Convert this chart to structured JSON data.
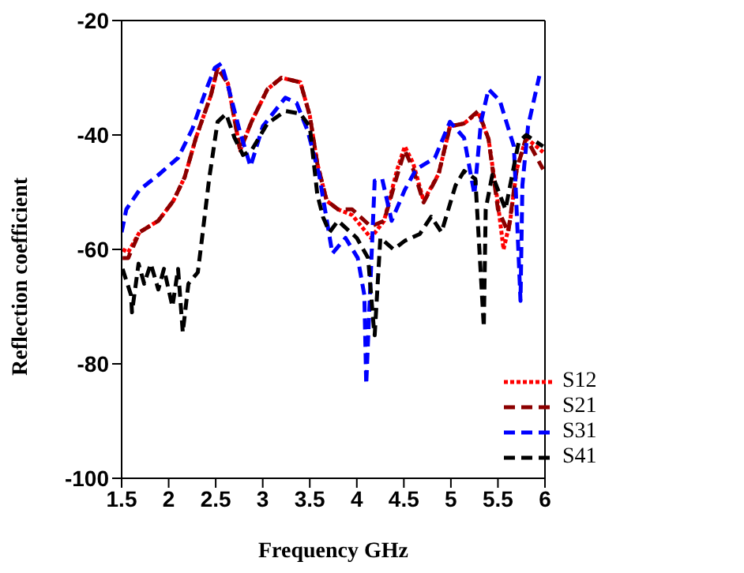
{
  "chart_data": {
    "type": "line",
    "xlabel": "Frequency GHz",
    "ylabel": "Reflection coefficient",
    "xlim": [
      1.5,
      6.0
    ],
    "ylim": [
      -100,
      -20
    ],
    "xticks": [
      1.5,
      2.0,
      2.5,
      3.0,
      3.5,
      4.0,
      4.5,
      5.0,
      5.5,
      6.0
    ],
    "yticks": [
      -100,
      -80,
      -60,
      -40,
      -20
    ],
    "grid": false,
    "legend": "bottom right",
    "marker": "none",
    "series": [
      {
        "name": "S12",
        "color": "#ff0000",
        "line_style": "dotted",
        "x": [
          1.51,
          1.57,
          1.69,
          1.89,
          2.05,
          2.17,
          2.29,
          2.45,
          2.52,
          2.63,
          2.76,
          2.88,
          3.05,
          3.2,
          3.4,
          3.5,
          3.58,
          3.68,
          3.8,
          3.95,
          4.15,
          4.29,
          4.43,
          4.51,
          4.6,
          4.71,
          4.87,
          4.99,
          5.14,
          5.29,
          5.4,
          5.5,
          5.56,
          5.63,
          5.7,
          5.8,
          5.98
        ],
        "values": [
          -60,
          -60.5,
          -57,
          -55,
          -51.5,
          -47.4,
          -40.5,
          -33,
          -28.3,
          -31,
          -42.7,
          -37.7,
          -32,
          -30,
          -30.8,
          -36.6,
          -45,
          -51.5,
          -53,
          -54,
          -58,
          -55,
          -46,
          -42,
          -45,
          -51.5,
          -46.8,
          -38.5,
          -38,
          -36,
          -40.7,
          -52,
          -60,
          -55,
          -46,
          -40.5,
          -43
        ]
      },
      {
        "name": "S21",
        "color": "#8b0000",
        "line_style": "dashed",
        "x": [
          1.51,
          1.57,
          1.69,
          1.89,
          2.05,
          2.17,
          2.29,
          2.45,
          2.52,
          2.63,
          2.76,
          2.88,
          3.05,
          3.2,
          3.4,
          3.5,
          3.58,
          3.68,
          3.8,
          3.95,
          4.15,
          4.29,
          4.43,
          4.51,
          4.6,
          4.71,
          4.87,
          4.99,
          5.14,
          5.29,
          5.4,
          5.5,
          5.61,
          5.7,
          5.8,
          5.98
        ],
        "values": [
          -61.5,
          -61.5,
          -57,
          -55,
          -51.5,
          -47.4,
          -40.5,
          -33,
          -28.3,
          -31,
          -42.7,
          -37.7,
          -32,
          -30,
          -30.8,
          -36.6,
          -45,
          -51.5,
          -53,
          -53,
          -56,
          -55,
          -47,
          -42.7,
          -46,
          -51.8,
          -46.8,
          -38.5,
          -38,
          -35.8,
          -40.7,
          -53,
          -57,
          -46,
          -40.5,
          -46
        ]
      },
      {
        "name": "S31",
        "color": "#0000ff",
        "line_style": "dashed",
        "x": [
          1.5,
          1.55,
          1.69,
          1.89,
          2.1,
          2.25,
          2.4,
          2.49,
          2.56,
          2.64,
          2.75,
          2.87,
          3.0,
          3.24,
          3.36,
          3.48,
          3.6,
          3.74,
          3.88,
          4.01,
          4.08,
          4.1,
          4.19,
          4.27,
          4.37,
          4.51,
          4.63,
          4.83,
          4.99,
          5.14,
          5.25,
          5.32,
          5.4,
          5.52,
          5.67,
          5.74,
          5.76,
          5.82,
          5.94
        ],
        "values": [
          -57,
          -53,
          -49.6,
          -47,
          -44,
          -39,
          -32,
          -28.3,
          -27.5,
          -32,
          -39,
          -45.5,
          -38.5,
          -33.5,
          -34.4,
          -39.4,
          -47,
          -60.7,
          -58,
          -61.5,
          -68,
          -83.6,
          -48,
          -47.7,
          -55,
          -49.6,
          -46,
          -44,
          -37.7,
          -40.5,
          -50.4,
          -37.7,
          -32,
          -34,
          -42,
          -69,
          -48.8,
          -38.5,
          -29.7
        ]
      },
      {
        "name": "S41",
        "color": "#000000",
        "line_style": "dashed",
        "x": [
          1.51,
          1.6,
          1.61,
          1.68,
          1.74,
          1.81,
          1.89,
          1.95,
          2.04,
          2.1,
          2.15,
          2.21,
          2.31,
          2.35,
          2.43,
          2.52,
          2.61,
          2.7,
          2.79,
          2.88,
          3.05,
          3.24,
          3.4,
          3.5,
          3.58,
          3.64,
          3.71,
          3.8,
          4.0,
          4.12,
          4.18,
          4.19,
          4.25,
          4.39,
          4.51,
          4.67,
          4.79,
          4.9,
          5.05,
          5.14,
          5.26,
          5.35,
          5.37,
          5.44,
          5.58,
          5.72,
          5.8,
          5.98
        ],
        "values": [
          -63.4,
          -68,
          -71,
          -62.5,
          -66,
          -62.5,
          -67,
          -63.4,
          -70,
          -63.4,
          -74.5,
          -66,
          -64,
          -58.7,
          -47.7,
          -37.7,
          -36.3,
          -40.5,
          -43.5,
          -42.7,
          -38,
          -35.8,
          -36.3,
          -38.5,
          -50.4,
          -54.3,
          -57,
          -55,
          -58,
          -61.5,
          -73.6,
          -75,
          -58,
          -60,
          -58.5,
          -57.3,
          -54.3,
          -57,
          -48.8,
          -46.3,
          -47.7,
          -73.6,
          -53,
          -47,
          -53,
          -41.3,
          -40,
          -42
        ]
      }
    ]
  }
}
